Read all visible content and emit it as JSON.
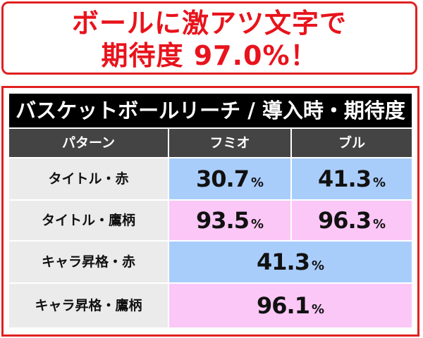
{
  "headline": {
    "line1": "ボールに激アツ文字で",
    "line2": "期待度 97.0%！"
  },
  "table": {
    "title": "バスケットボールリーチ / 導入時・期待度",
    "headers": {
      "pattern": "パターン",
      "fumio": "フミオ",
      "buru": "ブル"
    },
    "percent_sign": "%",
    "rows": [
      {
        "label": "タイトル・赤",
        "fumio": "30.7",
        "buru": "41.3"
      },
      {
        "label": "タイトル・鷹柄",
        "fumio": "93.5",
        "buru": "96.3"
      },
      {
        "label": "キャラ昇格・赤",
        "both": "41.3"
      },
      {
        "label": "キャラ昇格・鷹柄",
        "both": "96.1"
      }
    ]
  },
  "colors": {
    "accent_red": "#e8131c",
    "fumio_bull_blue": "#a9cdfb",
    "pink": "#fbc7f6",
    "header_gray": "#444444",
    "label_gray": "#ebebeb"
  }
}
